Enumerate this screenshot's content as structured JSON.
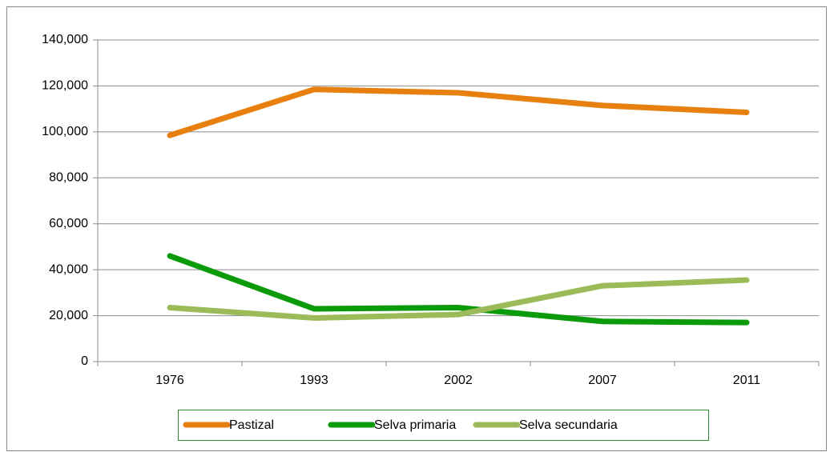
{
  "chart_data": {
    "type": "line",
    "categories": [
      "1976",
      "1993",
      "2002",
      "2007",
      "2011"
    ],
    "series": [
      {
        "name": "Pastizal",
        "color": "#e8800f",
        "values": [
          98500,
          118500,
          117000,
          111500,
          108500
        ]
      },
      {
        "name": "Selva primaria",
        "color": "#0a9a0a",
        "values": [
          46000,
          23000,
          23500,
          17500,
          17000
        ]
      },
      {
        "name": "Selva secundaria",
        "color": "#9bbb59",
        "values": [
          23500,
          19000,
          20500,
          33000,
          35500
        ]
      }
    ],
    "ylim": [
      0,
      140000
    ],
    "yticks": [
      0,
      {
        "value": 20000,
        "label": "20,000"
      },
      {
        "value": 40000,
        "label": "40,000"
      },
      {
        "value": 60000,
        "label": "60,000"
      },
      {
        "value": 80000,
        "label": "80,000"
      },
      {
        "value": 100000,
        "label": "100,000"
      },
      {
        "value": 120000,
        "label": "120,000"
      },
      {
        "value": 140000,
        "label": "140,000"
      }
    ],
    "grid": true,
    "legend": "bottom"
  }
}
